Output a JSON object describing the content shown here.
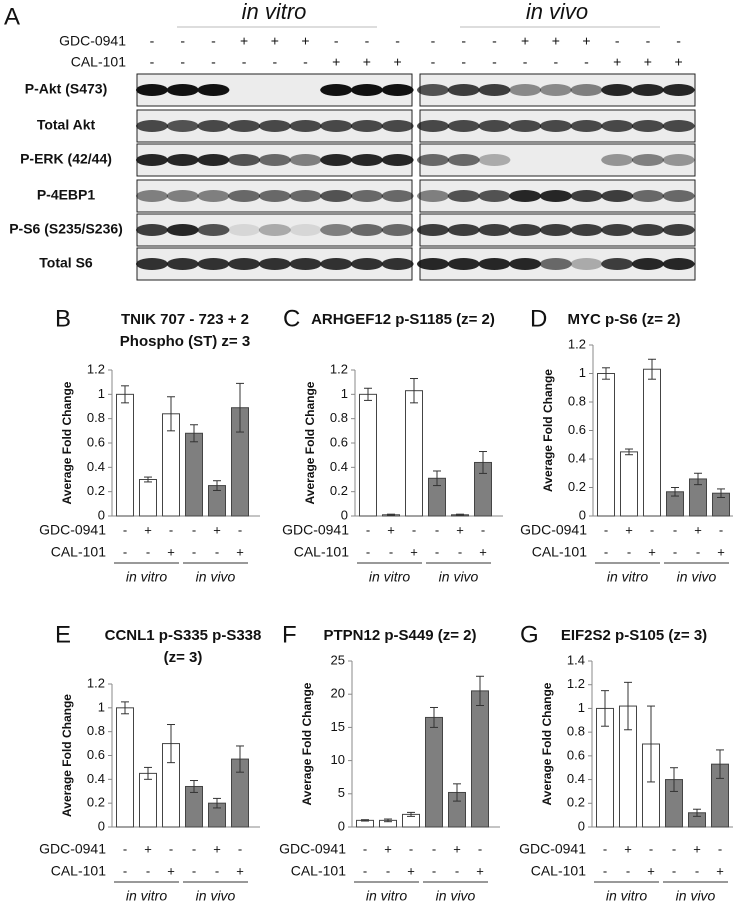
{
  "panel_a": {
    "label": "A",
    "groups": [
      "in vitro",
      "in vivo"
    ],
    "treatments": [
      {
        "name": "GDC-0941",
        "signs": [
          [
            "-",
            "-",
            "-",
            "+",
            "+",
            "+",
            "-",
            "-",
            "-"
          ],
          [
            "-",
            "-",
            "-",
            "+",
            "+",
            "+",
            "-",
            "-",
            "-"
          ]
        ]
      },
      {
        "name": "CAL-101",
        "signs": [
          [
            "-",
            "-",
            "-",
            "-",
            "-",
            "-",
            "+",
            "+",
            "+"
          ],
          [
            "-",
            "-",
            "-",
            "-",
            "-",
            "-",
            "+",
            "+",
            "+"
          ]
        ]
      }
    ],
    "rows": [
      "P-Akt (S473)",
      "Total Akt",
      "P-ERK (42/44)",
      "P-4EBP1",
      "P-S6 (S235/S236)",
      "Total S6"
    ]
  },
  "chart_data": [
    {
      "type": "bar",
      "label": "B",
      "title": [
        "TNIK 707 - 723 + 2",
        "Phospho (ST) z= 3"
      ],
      "ylabel": "Average Fold Change",
      "ylim": [
        0,
        1.2
      ],
      "yticks": [
        0,
        0.2,
        0.4,
        0.6,
        0.8,
        1,
        1.2
      ],
      "treatments": [
        {
          "name": "GDC-0941",
          "signs": [
            "-",
            "+",
            "-",
            "-",
            "+",
            "-"
          ]
        },
        {
          "name": "CAL-101",
          "signs": [
            "-",
            "-",
            "+",
            "-",
            "-",
            "+"
          ]
        }
      ],
      "series": [
        {
          "name": "in vitro",
          "color": "#ffffff",
          "values": [
            1.0,
            0.3,
            0.84
          ],
          "errors": [
            0.07,
            0.02,
            0.14
          ]
        },
        {
          "name": "in vivo",
          "color": "#7f7f7f",
          "values": [
            0.68,
            0.25,
            0.89
          ],
          "errors": [
            0.07,
            0.04,
            0.2
          ]
        }
      ]
    },
    {
      "type": "bar",
      "label": "C",
      "title": [
        "ARHGEF12 p-S1185 (z= 2)"
      ],
      "ylabel": "Average Fold Change",
      "ylim": [
        0,
        1.2
      ],
      "yticks": [
        0,
        0.2,
        0.4,
        0.6,
        0.8,
        1,
        1.2
      ],
      "treatments": [
        {
          "name": "GDC-0941",
          "signs": [
            "-",
            "+",
            "-",
            "-",
            "+",
            "-"
          ]
        },
        {
          "name": "CAL-101",
          "signs": [
            "-",
            "-",
            "+",
            "-",
            "-",
            "+"
          ]
        }
      ],
      "series": [
        {
          "name": "in vitro",
          "color": "#ffffff",
          "values": [
            1.0,
            0.01,
            1.03
          ],
          "errors": [
            0.05,
            0.005,
            0.1
          ]
        },
        {
          "name": "in vivo",
          "color": "#7f7f7f",
          "values": [
            0.31,
            0.01,
            0.44
          ],
          "errors": [
            0.06,
            0.005,
            0.09
          ]
        }
      ]
    },
    {
      "type": "bar",
      "label": "D",
      "title": [
        "MYC p-S6 (z= 2)"
      ],
      "ylabel": "Average Fold Change",
      "ylim": [
        0,
        1.2
      ],
      "yticks": [
        0,
        0.2,
        0.4,
        0.6,
        0.8,
        1,
        1.2
      ],
      "treatments": [
        {
          "name": "GDC-0941",
          "signs": [
            "-",
            "+",
            "-",
            "-",
            "+",
            "-"
          ]
        },
        {
          "name": "CAL-101",
          "signs": [
            "-",
            "-",
            "+",
            "-",
            "-",
            "+"
          ]
        }
      ],
      "series": [
        {
          "name": "in vitro",
          "color": "#ffffff",
          "values": [
            1.0,
            0.45,
            1.03
          ],
          "errors": [
            0.04,
            0.02,
            0.07
          ]
        },
        {
          "name": "in vivo",
          "color": "#7f7f7f",
          "values": [
            0.17,
            0.26,
            0.16
          ],
          "errors": [
            0.03,
            0.04,
            0.03
          ]
        }
      ]
    },
    {
      "type": "bar",
      "label": "E",
      "title": [
        "CCNL1 p-S335 p-S338",
        "(z= 3)"
      ],
      "ylabel": "Average Fold Change",
      "ylim": [
        0,
        1.2
      ],
      "yticks": [
        0,
        0.2,
        0.4,
        0.6,
        0.8,
        1,
        1.2
      ],
      "treatments": [
        {
          "name": "GDC-0941",
          "signs": [
            "-",
            "+",
            "-",
            "-",
            "+",
            "-"
          ]
        },
        {
          "name": "CAL-101",
          "signs": [
            "-",
            "-",
            "+",
            "-",
            "-",
            "+"
          ]
        }
      ],
      "series": [
        {
          "name": "in vitro",
          "color": "#ffffff",
          "values": [
            1.0,
            0.45,
            0.7
          ],
          "errors": [
            0.05,
            0.05,
            0.16
          ]
        },
        {
          "name": "in vivo",
          "color": "#7f7f7f",
          "values": [
            0.34,
            0.2,
            0.57
          ],
          "errors": [
            0.05,
            0.04,
            0.11
          ]
        }
      ]
    },
    {
      "type": "bar",
      "label": "F",
      "title": [
        "PTPN12 p-S449 (z= 2)"
      ],
      "ylabel": "Average Fold Change",
      "ylim": [
        0,
        25
      ],
      "yticks": [
        0,
        5,
        10,
        15,
        20,
        25
      ],
      "treatments": [
        {
          "name": "GDC-0941",
          "signs": [
            "-",
            "+",
            "-",
            "-",
            "+",
            "-"
          ]
        },
        {
          "name": "CAL-101",
          "signs": [
            "-",
            "-",
            "+",
            "-",
            "-",
            "+"
          ]
        }
      ],
      "series": [
        {
          "name": "in vitro",
          "color": "#ffffff",
          "values": [
            1.0,
            1.0,
            1.9
          ],
          "errors": [
            0.1,
            0.2,
            0.3
          ]
        },
        {
          "name": "in vivo",
          "color": "#7f7f7f",
          "values": [
            16.5,
            5.2,
            20.5
          ],
          "errors": [
            1.5,
            1.3,
            2.2
          ]
        }
      ]
    },
    {
      "type": "bar",
      "label": "G",
      "title": [
        "EIF2S2 p-S105 (z= 3)"
      ],
      "ylabel": "Average Fold Change",
      "ylim": [
        0,
        1.4
      ],
      "yticks": [
        0,
        0.2,
        0.4,
        0.6,
        0.8,
        1,
        1.2,
        1.4
      ],
      "treatments": [
        {
          "name": "GDC-0941",
          "signs": [
            "-",
            "+",
            "-",
            "-",
            "+",
            "-"
          ]
        },
        {
          "name": "CAL-101",
          "signs": [
            "-",
            "-",
            "+",
            "-",
            "-",
            "+"
          ]
        }
      ],
      "series": [
        {
          "name": "in vitro",
          "color": "#ffffff",
          "values": [
            1.0,
            1.02,
            0.7
          ],
          "errors": [
            0.15,
            0.2,
            0.32
          ]
        },
        {
          "name": "in vivo",
          "color": "#7f7f7f",
          "values": [
            0.4,
            0.12,
            0.53
          ],
          "errors": [
            0.1,
            0.03,
            0.12
          ]
        }
      ]
    }
  ]
}
